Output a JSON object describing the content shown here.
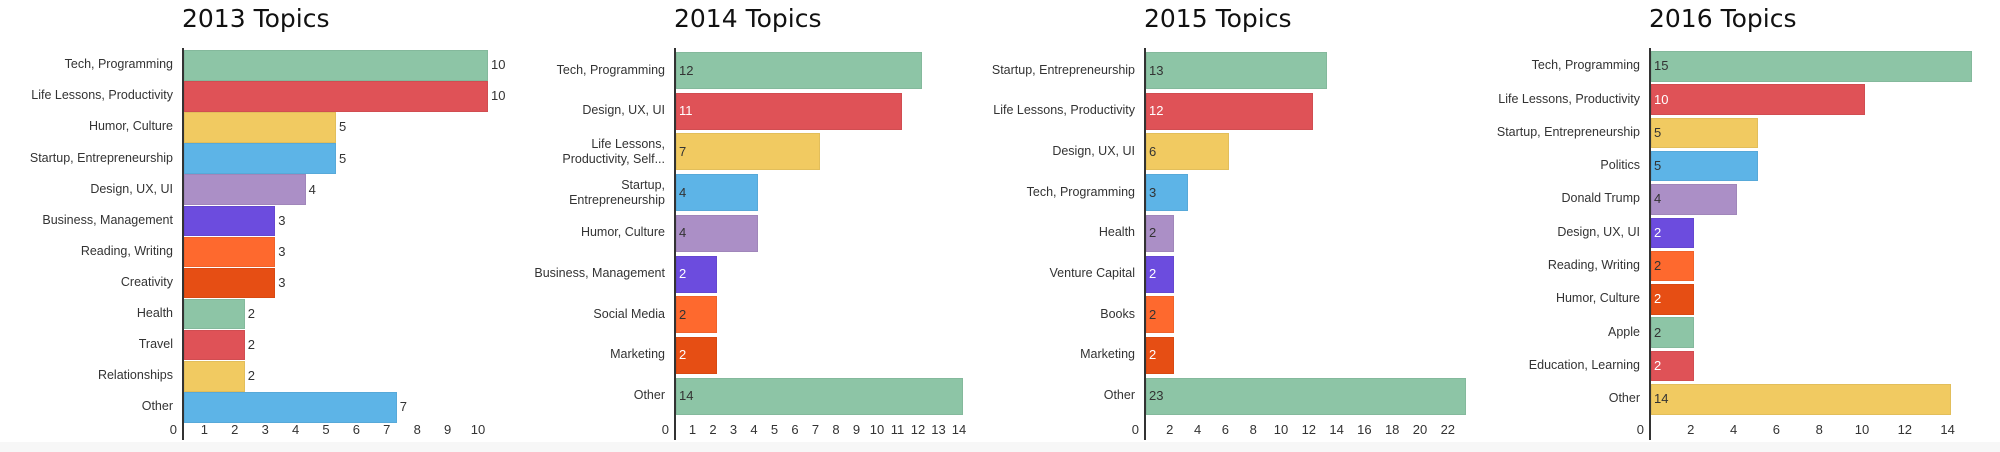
{
  "chart_data": [
    {
      "type": "bar",
      "orientation": "horizontal",
      "title": "2013 Topics",
      "categories": [
        "Tech, Programming",
        "Life Lessons, Productivity",
        "Humor, Culture",
        "Startup, Entrepreneurship",
        "Design, UX, UI",
        "Business, Management",
        "Reading, Writing",
        "Creativity",
        "Health",
        "Travel",
        "Relationships",
        "Other"
      ],
      "values": [
        10,
        10,
        5,
        5,
        4,
        3,
        3,
        3,
        2,
        2,
        2,
        7
      ],
      "xlim": [
        0,
        10
      ],
      "ticks": [
        "0",
        "1",
        "2",
        "3",
        "4",
        "5",
        "6",
        "7",
        "8",
        "9",
        "10"
      ],
      "value_labels": "outside",
      "xlabel": "",
      "ylabel": "",
      "grid": false
    },
    {
      "type": "bar",
      "orientation": "horizontal",
      "title": "2014 Topics",
      "categories": [
        "Tech, Programming",
        "Design, UX, UI",
        "Life Lessons, Productivity, Self...",
        "Startup, Entrepreneurship",
        "Humor, Culture",
        "Business, Management",
        "Social Media",
        "Marketing",
        "Other"
      ],
      "values": [
        12,
        11,
        7,
        4,
        4,
        2,
        2,
        2,
        14
      ],
      "xlim": [
        0,
        14
      ],
      "ticks": [
        "0",
        "1",
        "2",
        "3",
        "4",
        "5",
        "6",
        "7",
        "8",
        "9",
        "10",
        "11",
        "12",
        "13",
        "14"
      ],
      "value_labels": "inside",
      "xlabel": "",
      "ylabel": "",
      "grid": false
    },
    {
      "type": "bar",
      "orientation": "horizontal",
      "title": "2015 Topics",
      "categories": [
        "Startup, Entrepreneurship",
        "Life Lessons, Productivity",
        "Design, UX, UI",
        "Tech, Programming",
        "Health",
        "Venture Capital",
        "Books",
        "Marketing",
        "Other"
      ],
      "values": [
        13,
        12,
        6,
        3,
        2,
        2,
        2,
        2,
        23
      ],
      "xlim": [
        0,
        23
      ],
      "ticks": [
        "0",
        "2",
        "4",
        "6",
        "8",
        "10",
        "12",
        "14",
        "16",
        "18",
        "20",
        "22"
      ],
      "value_labels": "inside",
      "xlabel": "",
      "ylabel": "",
      "grid": false
    },
    {
      "type": "bar",
      "orientation": "horizontal",
      "title": "2016 Topics",
      "categories": [
        "Tech, Programming",
        "Life Lessons, Productivity",
        "Startup, Entrepreneurship",
        "Politics",
        "Donald Trump",
        "Design, UX, UI",
        "Reading, Writing",
        "Humor, Culture",
        "Apple",
        "Education, Learning",
        "Other"
      ],
      "values": [
        15,
        10,
        5,
        5,
        4,
        2,
        2,
        2,
        2,
        2,
        14
      ],
      "xlim": [
        0,
        15
      ],
      "ticks": [
        "0",
        "2",
        "4",
        "6",
        "8",
        "10",
        "12",
        "14"
      ],
      "value_labels": "inside",
      "xlabel": "",
      "ylabel": "",
      "grid": false
    }
  ],
  "palette": [
    "#8dc5a6",
    "#df5257",
    "#f1ca61",
    "#5db4e7",
    "#ab8fc6",
    "#6c4cde",
    "#fe692e",
    "#e64e14"
  ],
  "label_text_colors": {
    "light": "#ffffff",
    "dark": "#333333"
  }
}
